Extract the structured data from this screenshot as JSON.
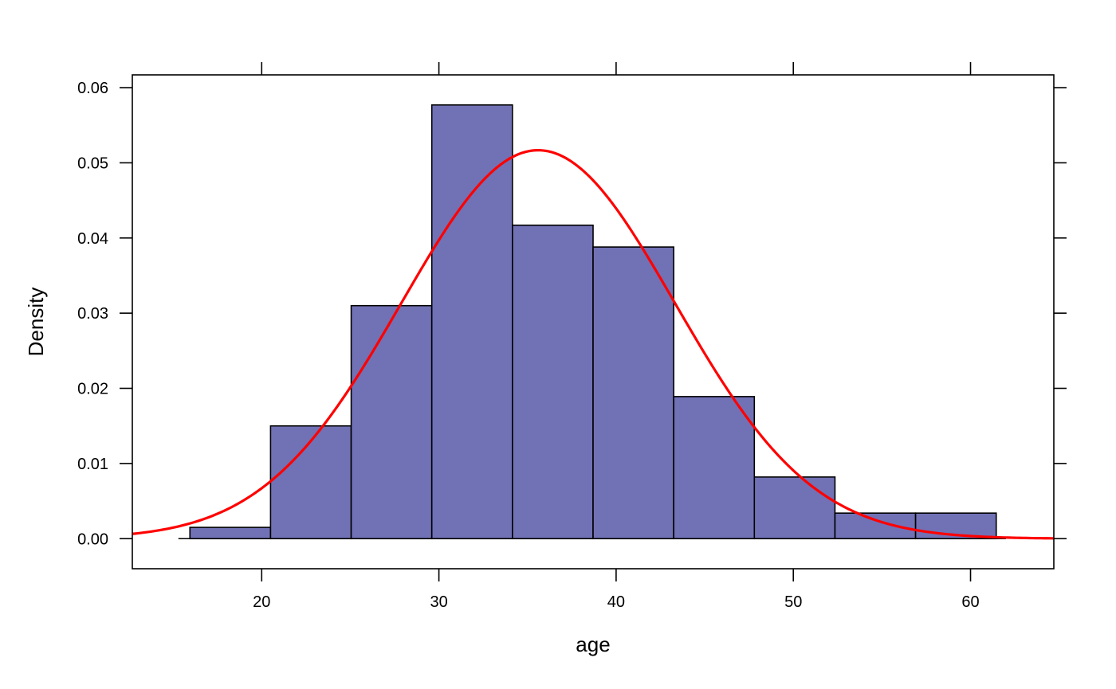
{
  "chart_data": {
    "type": "bar",
    "subtype": "histogram with fitted normal density curve",
    "title": "",
    "xlabel": "age",
    "ylabel": "Density",
    "xlim": [
      12.7,
      64.7
    ],
    "ylim": [
      -0.004,
      0.0617
    ],
    "x_ticks": [
      20,
      30,
      40,
      50,
      60
    ],
    "x_tick_labels": [
      "20",
      "30",
      "40",
      "50",
      "60"
    ],
    "y_ticks": [
      0.0,
      0.01,
      0.02,
      0.03,
      0.04,
      0.05,
      0.06
    ],
    "y_tick_labels": [
      "0.00",
      "0.01",
      "0.02",
      "0.03",
      "0.04",
      "0.05",
      "0.06"
    ],
    "grid": false,
    "legend": "none",
    "bins": [
      {
        "from": 15.95,
        "to": 20.5,
        "density": 0.0015
      },
      {
        "from": 20.5,
        "to": 25.05,
        "density": 0.015
      },
      {
        "from": 25.05,
        "to": 29.6,
        "density": 0.031
      },
      {
        "from": 29.6,
        "to": 34.15,
        "density": 0.0577
      },
      {
        "from": 34.15,
        "to": 38.7,
        "density": 0.0417
      },
      {
        "from": 38.7,
        "to": 43.25,
        "density": 0.0388
      },
      {
        "from": 43.25,
        "to": 47.8,
        "density": 0.0189
      },
      {
        "from": 47.8,
        "to": 52.35,
        "density": 0.0082
      },
      {
        "from": 52.35,
        "to": 56.9,
        "density": 0.0034
      },
      {
        "from": 56.9,
        "to": 61.45,
        "density": 0.0034
      }
    ],
    "baseline_range": [
      15.3,
      62.0
    ],
    "density_curve": {
      "distribution": "normal",
      "mean": 35.6,
      "sd": 7.72,
      "x_range": [
        12.7,
        64.7
      ]
    },
    "colors": {
      "bar_fill": "#7171b6",
      "bar_stroke": "#000000",
      "curve": "#ff0000",
      "axis": "#000000",
      "background": "#ffffff"
    }
  }
}
